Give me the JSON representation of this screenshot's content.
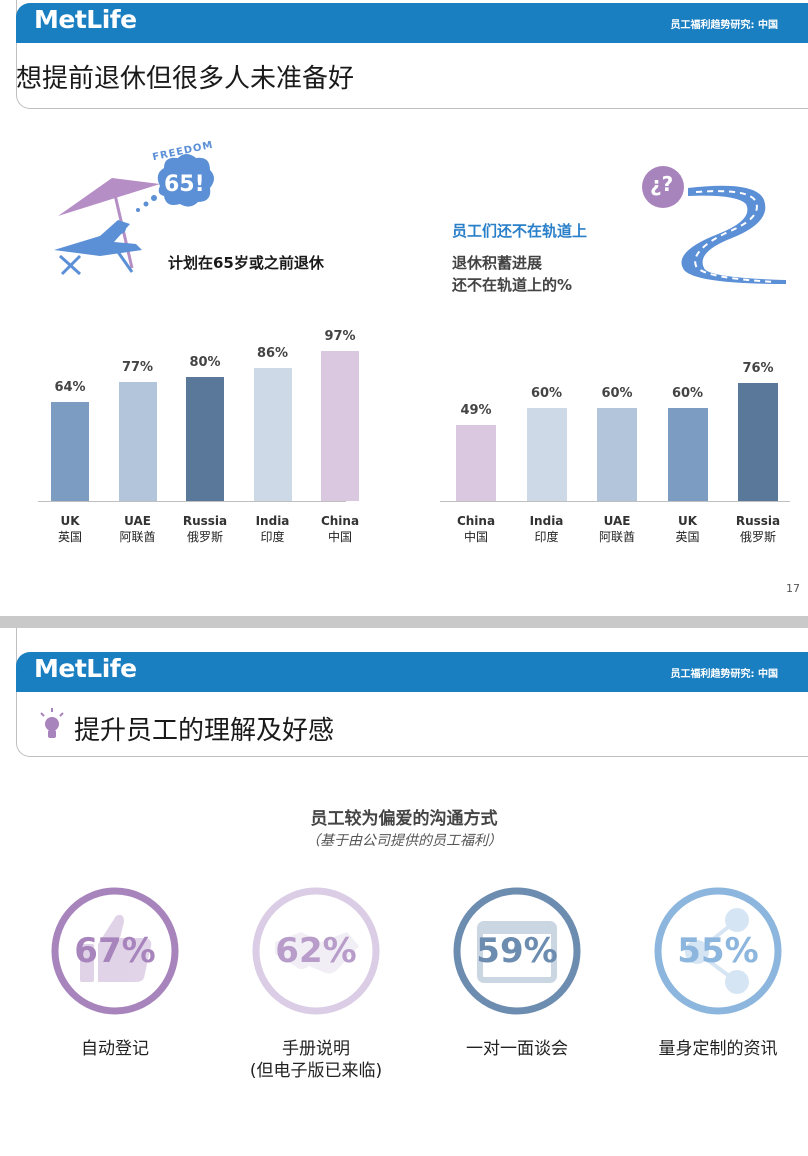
{
  "slide1": {
    "logo": "MetLife",
    "header_right": "员工福利趋势研究: 中国",
    "title": "想提前退休但很多人未准备好",
    "freedom_badge_text": "FREEDOM",
    "freedom_badge_number": "65!",
    "left_caption": "计划在65岁或之前退休",
    "right_heading": "员工们还不在轨道上",
    "right_subheading_line1": "退休积蓄进展",
    "right_subheading_line2": "还不在轨道上的%",
    "question_mark": "¿?",
    "page_number": "17",
    "colors": {
      "header_blue": "#1a7fc1",
      "road_blue": "#5b8fd6",
      "umbrella_purple": "#b68ec6",
      "heading_blue": "#2a7fc9"
    },
    "chart_data": [
      {
        "type": "bar",
        "categories_en": [
          "UK",
          "UAE",
          "Russia",
          "India",
          "China"
        ],
        "categories_cn": [
          "英国",
          "阿联酋",
          "俄罗斯",
          "印度",
          "中国"
        ],
        "values": [
          64,
          77,
          80,
          86,
          97
        ],
        "value_labels": [
          "64%",
          "77%",
          "80%",
          "86%",
          "97%"
        ],
        "colors": [
          "#7c9cc2",
          "#b3c5db",
          "#5a7899",
          "#cdd9e6",
          "#dac7e0"
        ],
        "ylim": [
          0,
          100
        ]
      },
      {
        "type": "bar",
        "categories_en": [
          "China",
          "India",
          "UAE",
          "UK",
          "Russia"
        ],
        "categories_cn": [
          "中国",
          "印度",
          "阿联酋",
          "英国",
          "俄罗斯"
        ],
        "values": [
          49,
          60,
          60,
          60,
          76
        ],
        "value_labels": [
          "49%",
          "60%",
          "60%",
          "60%",
          "76%"
        ],
        "colors": [
          "#dac7e0",
          "#cdd9e6",
          "#b3c5db",
          "#7c9cc2",
          "#5a7899"
        ],
        "ylim": [
          0,
          100
        ]
      }
    ]
  },
  "slide2": {
    "logo": "MetLife",
    "header_right": "员工福利趋势研究: 中国",
    "title": "提升员工的理解及好感",
    "subtitle": "员工较为偏爱的沟通方式",
    "subtitle_note": "（基于由公司提供的员工福利）",
    "items": [
      {
        "pct": "67%",
        "value": 67,
        "caption": "自动登记",
        "caption2": "",
        "color": "#a884bd",
        "icon": "thumbs-up-icon"
      },
      {
        "pct": "62%",
        "value": 62,
        "caption": "手册说明",
        "caption2": "(但电子版已来临)",
        "color": "#dacde5",
        "icon": "handshake-icon"
      },
      {
        "pct": "59%",
        "value": 59,
        "caption": "一对一面谈会",
        "caption2": "",
        "color": "#6c8cb0",
        "icon": "browser-window-icon"
      },
      {
        "pct": "55%",
        "value": 55,
        "caption": "量身定制的资讯",
        "caption2": "",
        "color": "#8cb6dd",
        "icon": "share-nodes-icon"
      }
    ]
  }
}
